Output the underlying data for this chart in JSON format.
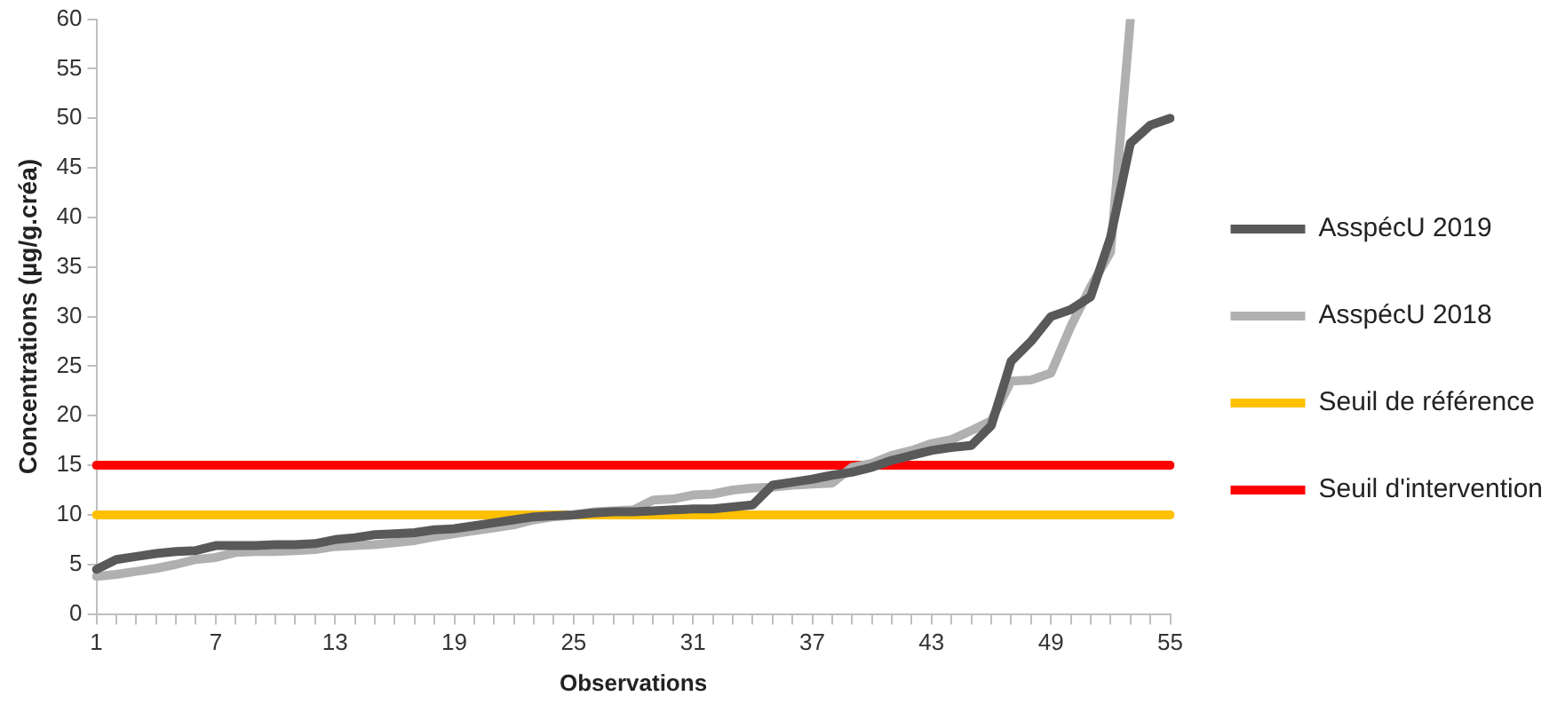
{
  "chart_data": {
    "type": "line",
    "xlabel": "Observations",
    "ylabel": "Concentrations (µg/g.créa)",
    "categories": [
      "1",
      null,
      null,
      null,
      null,
      null,
      "7",
      null,
      null,
      null,
      null,
      null,
      "13",
      null,
      null,
      null,
      null,
      null,
      "19",
      null,
      null,
      null,
      null,
      null,
      "25",
      null,
      null,
      null,
      null,
      null,
      "31",
      null,
      null,
      null,
      null,
      null,
      "37",
      null,
      null,
      null,
      null,
      null,
      "43",
      null,
      null,
      null,
      null,
      null,
      "49",
      null,
      null,
      null,
      null,
      null,
      "55"
    ],
    "ylim": [
      0,
      60
    ],
    "yticks": [
      0,
      5,
      10,
      15,
      20,
      25,
      30,
      35,
      40,
      45,
      50,
      55,
      60
    ],
    "grid": false,
    "legend": "right",
    "marker": "none",
    "line_style": "solid",
    "series": [
      {
        "name": "AsspécU 2019",
        "color": "#595959",
        "values": [
          4.5,
          5.5,
          5.8,
          6.1,
          6.3,
          6.4,
          6.9,
          6.9,
          6.9,
          7.0,
          7.0,
          7.1,
          7.5,
          7.7,
          8.0,
          8.1,
          8.2,
          8.5,
          8.6,
          8.9,
          9.2,
          9.5,
          9.8,
          9.9,
          10.0,
          10.2,
          10.3,
          10.3,
          10.4,
          10.5,
          10.6,
          10.6,
          10.8,
          11.0,
          13.0,
          13.3,
          13.6,
          14.0,
          14.3,
          14.8,
          15.5,
          16.0,
          16.5,
          16.8,
          17.0,
          19.0,
          25.5,
          27.5,
          30.0,
          30.7,
          32.0,
          38.0,
          47.5,
          49.3,
          50.0
        ]
      },
      {
        "name": "AsspécU 2018",
        "color": "#b0b0b0",
        "values": [
          3.8,
          4.0,
          4.3,
          4.6,
          5.0,
          5.5,
          5.7,
          6.2,
          6.3,
          6.3,
          6.4,
          6.5,
          6.8,
          6.9,
          7.0,
          7.2,
          7.4,
          7.8,
          8.1,
          8.4,
          8.7,
          9.0,
          9.5,
          9.8,
          10.0,
          10.3,
          10.4,
          10.5,
          11.5,
          11.6,
          12.0,
          12.1,
          12.5,
          12.7,
          12.8,
          13.0,
          13.1,
          13.2,
          14.8,
          15.2,
          16.0,
          16.5,
          17.2,
          17.6,
          18.5,
          19.5,
          23.5,
          23.6,
          24.3,
          29.0,
          33.0,
          36.5,
          60,
          null,
          null
        ]
      },
      {
        "name": "Seuil de référence",
        "color": "#ffc000",
        "values": [
          10,
          10,
          10,
          10,
          10,
          10,
          10,
          10,
          10,
          10,
          10,
          10,
          10,
          10,
          10,
          10,
          10,
          10,
          10,
          10,
          10,
          10,
          10,
          10,
          10,
          10,
          10,
          10,
          10,
          10,
          10,
          10,
          10,
          10,
          10,
          10,
          10,
          10,
          10,
          10,
          10,
          10,
          10,
          10,
          10,
          10,
          10,
          10,
          10,
          10,
          10,
          10,
          10,
          10,
          10
        ]
      },
      {
        "name": "Seuil d'intervention",
        "color": "#ff0000",
        "values": [
          15,
          15,
          15,
          15,
          15,
          15,
          15,
          15,
          15,
          15,
          15,
          15,
          15,
          15,
          15,
          15,
          15,
          15,
          15,
          15,
          15,
          15,
          15,
          15,
          15,
          15,
          15,
          15,
          15,
          15,
          15,
          15,
          15,
          15,
          15,
          15,
          15,
          15,
          15,
          15,
          15,
          15,
          15,
          15,
          15,
          15,
          15,
          15,
          15,
          15,
          15,
          15,
          15,
          15,
          15
        ]
      }
    ]
  }
}
